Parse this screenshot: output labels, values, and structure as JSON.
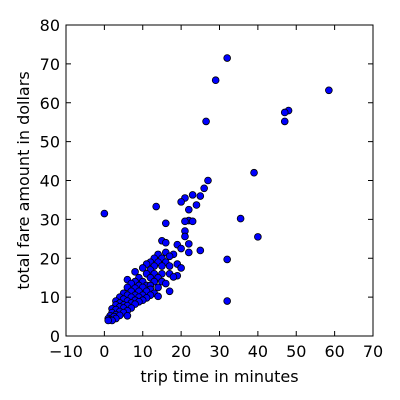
{
  "chart_data": {
    "type": "scatter",
    "xlabel": "trip time in minutes",
    "ylabel": "total fare amount in dollars",
    "xlim": [
      -10,
      70
    ],
    "ylim": [
      0,
      80
    ],
    "xticks": [
      -10,
      0,
      10,
      20,
      30,
      40,
      50,
      60,
      70
    ],
    "yticks": [
      0,
      10,
      20,
      30,
      40,
      50,
      60,
      70,
      80
    ],
    "grid": false,
    "marker_color": "#0000ff",
    "marker_edge_color": "#000000",
    "series": [
      {
        "points": [
          [
            0,
            31.5
          ],
          [
            32,
            71.5
          ],
          [
            29,
            65.8
          ],
          [
            58.5,
            63.2
          ],
          [
            48,
            58
          ],
          [
            47,
            57.5
          ],
          [
            47,
            55.2
          ],
          [
            26.5,
            55.2
          ],
          [
            39,
            42
          ],
          [
            27,
            40
          ],
          [
            26,
            38
          ],
          [
            25,
            36
          ],
          [
            23,
            36.3
          ],
          [
            21,
            35.5
          ],
          [
            20,
            34.5
          ],
          [
            24,
            33.7
          ],
          [
            13.5,
            33.3
          ],
          [
            22,
            32.5
          ],
          [
            35.5,
            30.2
          ],
          [
            22,
            29.7
          ],
          [
            21,
            29.5
          ],
          [
            23,
            29.5
          ],
          [
            16,
            29
          ],
          [
            21,
            27
          ],
          [
            21,
            25.6
          ],
          [
            40,
            25.5
          ],
          [
            15,
            24.5
          ],
          [
            16,
            24
          ],
          [
            22,
            23.7
          ],
          [
            19,
            23.5
          ],
          [
            20,
            22.5
          ],
          [
            25,
            22
          ],
          [
            14,
            21
          ],
          [
            16,
            21.5
          ],
          [
            18,
            21
          ],
          [
            22,
            21.5
          ],
          [
            13,
            20
          ],
          [
            15,
            20
          ],
          [
            17,
            20.5
          ],
          [
            32,
            19.7
          ],
          [
            12,
            19
          ],
          [
            14,
            19
          ],
          [
            16,
            19
          ],
          [
            19,
            18.5
          ],
          [
            11,
            18.5
          ],
          [
            13,
            18
          ],
          [
            15,
            18
          ],
          [
            17,
            18
          ],
          [
            10,
            17.5
          ],
          [
            12,
            17
          ],
          [
            20,
            17.5
          ],
          [
            8,
            16.5
          ],
          [
            11,
            16
          ],
          [
            13,
            16
          ],
          [
            15,
            16
          ],
          [
            17,
            16
          ],
          [
            19,
            15.5
          ],
          [
            18,
            15.2
          ],
          [
            9,
            15
          ],
          [
            12,
            15
          ],
          [
            14,
            15
          ],
          [
            6,
            14.5
          ],
          [
            8,
            14
          ],
          [
            10,
            14
          ],
          [
            13,
            14
          ],
          [
            15,
            14
          ],
          [
            7,
            13.5
          ],
          [
            9,
            13
          ],
          [
            11,
            13
          ],
          [
            12,
            13
          ],
          [
            16,
            13.5
          ],
          [
            6,
            12.5
          ],
          [
            8,
            12.3
          ],
          [
            10,
            12.5
          ],
          [
            12,
            12
          ],
          [
            14,
            12.5
          ],
          [
            7,
            11.5
          ],
          [
            9,
            11.5
          ],
          [
            11,
            11.5
          ],
          [
            13,
            11
          ],
          [
            17,
            11.5
          ],
          [
            5,
            11
          ],
          [
            6,
            10.5
          ],
          [
            8,
            10.5
          ],
          [
            10,
            10.5
          ],
          [
            12,
            10.5
          ],
          [
            14,
            10.2
          ],
          [
            4,
            10
          ],
          [
            7,
            10
          ],
          [
            9,
            10
          ],
          [
            11,
            9.8
          ],
          [
            5,
            9.5
          ],
          [
            8,
            9.2
          ],
          [
            10,
            9.2
          ],
          [
            3,
            9
          ],
          [
            6,
            9
          ],
          [
            9,
            8.8
          ],
          [
            32,
            9
          ],
          [
            4,
            8.5
          ],
          [
            7,
            8.5
          ],
          [
            3,
            8
          ],
          [
            5,
            8
          ],
          [
            8,
            8.2
          ],
          [
            6,
            7.8
          ],
          [
            4,
            7.5
          ],
          [
            2,
            7
          ],
          [
            5,
            7.2
          ],
          [
            7,
            7.2
          ],
          [
            3,
            6.8
          ],
          [
            6,
            6.5
          ],
          [
            4,
            6.3
          ],
          [
            2,
            6
          ],
          [
            5,
            6
          ],
          [
            3,
            5.5
          ],
          [
            1.5,
            5.2
          ],
          [
            4,
            5.3
          ],
          [
            2.5,
            5
          ],
          [
            6,
            5.2
          ],
          [
            1,
            4.5
          ],
          [
            3,
            4.5
          ],
          [
            1.5,
            4.2
          ],
          [
            2,
            4
          ],
          [
            1,
            4
          ]
        ]
      }
    ]
  }
}
